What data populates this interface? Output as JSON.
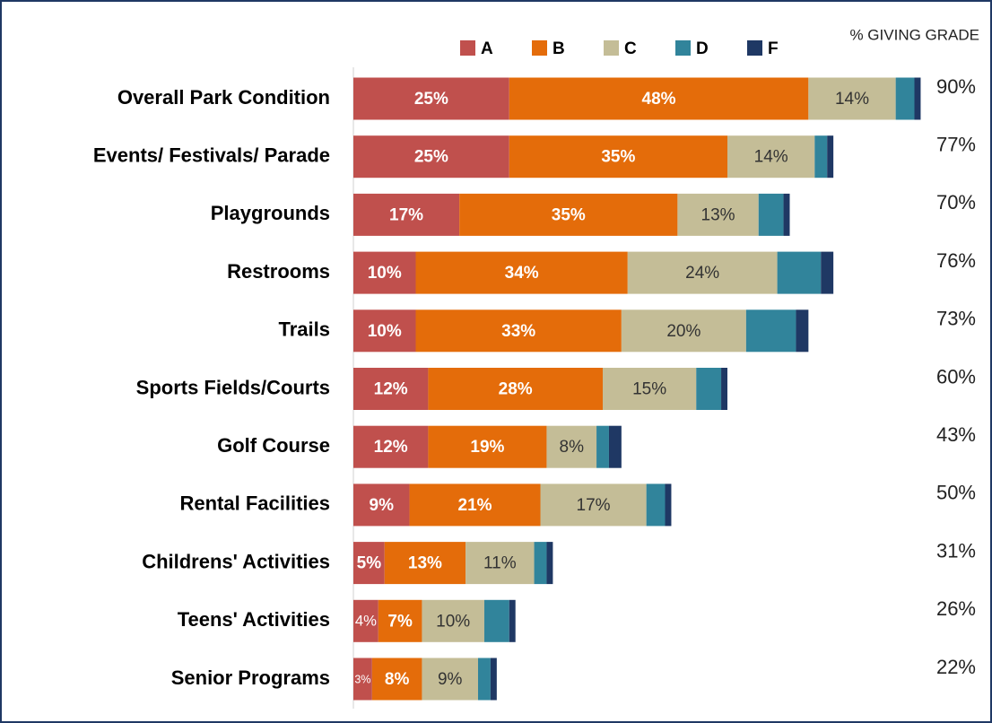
{
  "chart_data": {
    "type": "stacked-bar-horizontal",
    "categories": [
      "Overall Park Condition",
      "Events/ Festivals/ Parade",
      "Playgrounds",
      "Restrooms",
      "Trails",
      "Sports Fields/Courts",
      "Golf Course",
      "Rental Facilities",
      "Childrens' Activities",
      "Teens' Activities",
      "Senior Programs"
    ],
    "series": [
      {
        "name": "A",
        "color": "#c0504d",
        "values": [
          25,
          25,
          17,
          10,
          10,
          12,
          12,
          9,
          5,
          4,
          3
        ],
        "value_labels": [
          "25%",
          "25%",
          "17%",
          "10%",
          "10%",
          "12%",
          "12%",
          "9%",
          "5%",
          "4%",
          "3%"
        ]
      },
      {
        "name": "B",
        "color": "#e46c0a",
        "values": [
          48,
          35,
          35,
          34,
          33,
          28,
          19,
          21,
          13,
          7,
          8
        ],
        "value_labels": [
          "48%",
          "35%",
          "35%",
          "34%",
          "33%",
          "28%",
          "19%",
          "21%",
          "13%",
          "7%",
          "8%"
        ]
      },
      {
        "name": "C",
        "color": "#c4bd97",
        "values": [
          14,
          14,
          13,
          24,
          20,
          15,
          8,
          17,
          11,
          10,
          9
        ],
        "value_labels": [
          "14%",
          "14%",
          "13%",
          "24%",
          "20%",
          "15%",
          "8%",
          "17%",
          "11%",
          "10%",
          "9%"
        ]
      },
      {
        "name": "D",
        "color": "#31849b",
        "values": [
          3,
          2,
          4,
          7,
          8,
          4,
          2,
          3,
          2,
          4,
          2
        ]
      },
      {
        "name": "F",
        "color": "#1f3864",
        "values": [
          1,
          1,
          1,
          2,
          2,
          1,
          2,
          1,
          1,
          1,
          1
        ]
      }
    ],
    "totals_title": "% GIVING GRADE",
    "totals": [
      90,
      77,
      70,
      76,
      73,
      60,
      43,
      50,
      31,
      26,
      22
    ],
    "total_labels": [
      "90%",
      "77%",
      "70%",
      "76%",
      "73%",
      "60%",
      "43%",
      "50%",
      "31%",
      "26%",
      "22%"
    ],
    "xlim": [
      0,
      100
    ]
  }
}
